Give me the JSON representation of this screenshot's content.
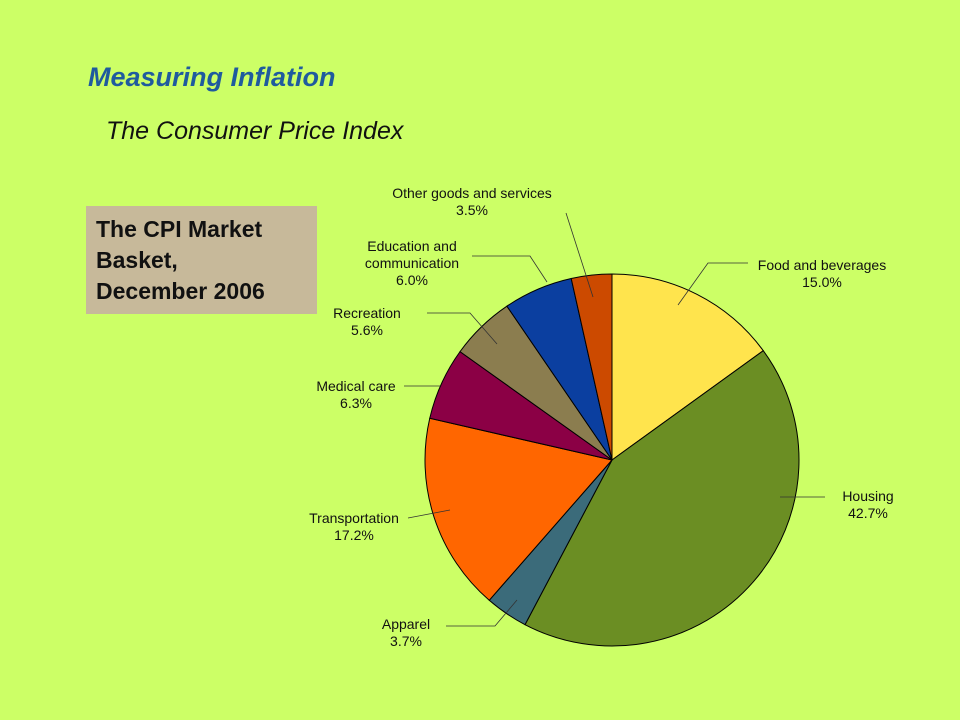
{
  "slide": {
    "title": "Measuring Inflation",
    "subtitle": "The Consumer Price Index"
  },
  "box": {
    "lines": [
      "The CPI Market",
      "Basket,",
      "December 2006"
    ],
    "color": "#c7b99a"
  },
  "chart_data": {
    "type": "pie",
    "title": "",
    "start": "12 o'clock",
    "direction": "clockwise",
    "slices": [
      {
        "label": "Food and beverages",
        "value_label": "15.0%",
        "value": 15.0,
        "color": "#ffe44d"
      },
      {
        "label": "Housing",
        "value_label": "42.7%",
        "value": 42.7,
        "color": "#6b8e23"
      },
      {
        "label": "Apparel",
        "value_label": "3.7%",
        "value": 3.7,
        "color": "#3b6b7a"
      },
      {
        "label": "Transportation",
        "value_label": "17.2%",
        "value": 17.2,
        "color": "#ff6600"
      },
      {
        "label": "Medical care",
        "value_label": "6.3%",
        "value": 6.3,
        "color": "#8b0045"
      },
      {
        "label": "Recreation",
        "value_label": "5.6%",
        "value": 5.6,
        "color": "#8b7d4f"
      },
      {
        "label": "Education and communication",
        "value_label": "6.0%",
        "value": 6.0,
        "color": "#0b3fa0"
      },
      {
        "label": "Other goods and services",
        "value_label": "3.5%",
        "value": 3.5,
        "color": "#cc4a00"
      }
    ]
  }
}
